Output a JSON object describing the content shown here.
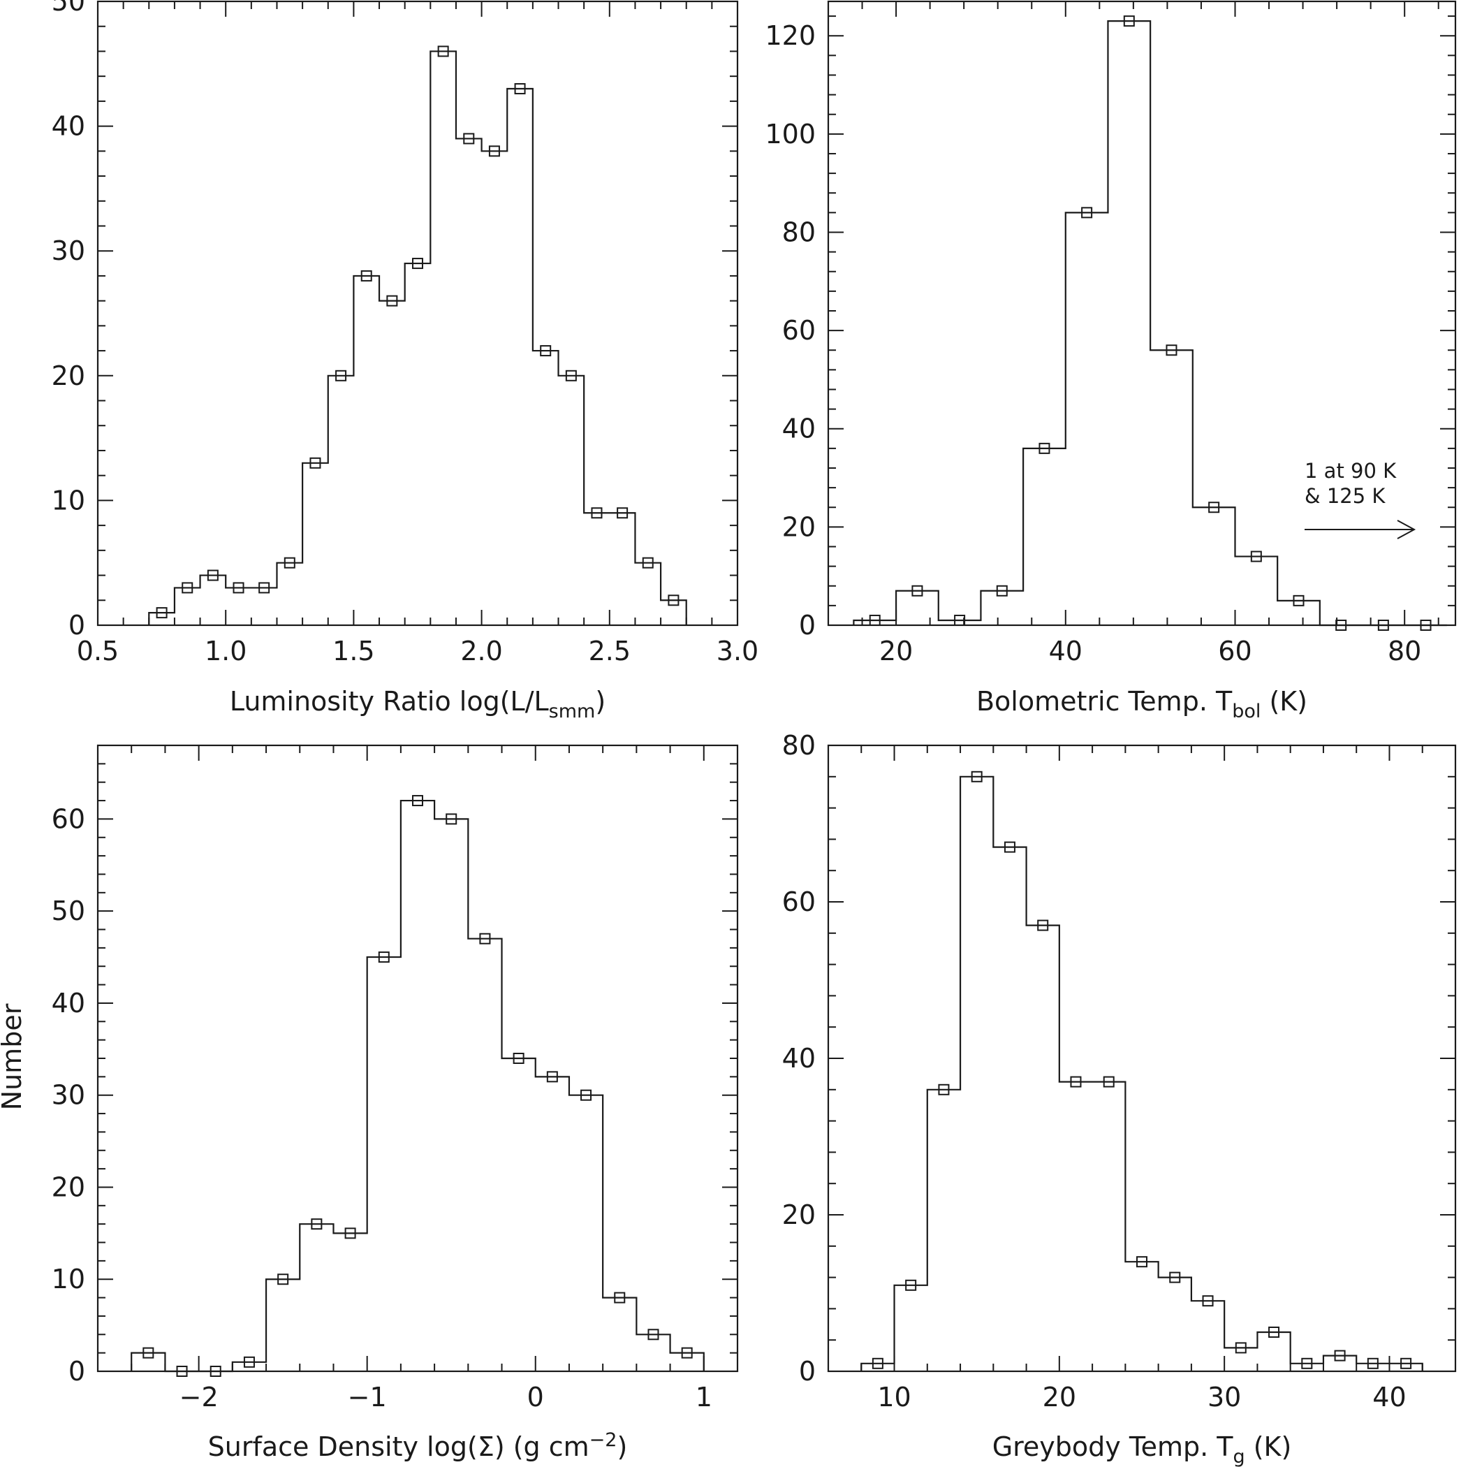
{
  "figure": {
    "shared_ylabel": "Number"
  },
  "chart_data": [
    {
      "type": "histogram",
      "id": "lum",
      "xlabel": {
        "main": "Luminosity Ratio log(L/L",
        "sub": "smm",
        "tail": ")"
      },
      "xlim": [
        0.5,
        3.0
      ],
      "ylim": [
        0,
        50
      ],
      "xticks": [
        0.5,
        1.0,
        1.5,
        2.0,
        2.5,
        3.0
      ],
      "xtick_labels": [
        "0.5",
        "1.0",
        "1.5",
        "2.0",
        "2.5",
        "3.0"
      ],
      "yticks": [
        0,
        10,
        20,
        30,
        40,
        50
      ],
      "ytick_labels": [
        "0",
        "10",
        "20",
        "30",
        "40",
        "50"
      ],
      "bin_edges": [
        0.7,
        0.8,
        0.9,
        1.0,
        1.1,
        1.2,
        1.3,
        1.4,
        1.5,
        1.6,
        1.7,
        1.8,
        1.9,
        2.0,
        2.1,
        2.2,
        2.3,
        2.4,
        2.5,
        2.6,
        2.7,
        2.8
      ],
      "counts": [
        1,
        3,
        4,
        3,
        3,
        5,
        13,
        20,
        28,
        26,
        29,
        46,
        39,
        38,
        43,
        22,
        20,
        9,
        9,
        5,
        2
      ]
    },
    {
      "type": "histogram",
      "id": "tbol",
      "xlabel": {
        "main": "Bolometric Temp. T",
        "sub": "bol",
        "tail": " (K)"
      },
      "xlim": [
        12,
        86
      ],
      "ylim": [
        0,
        127
      ],
      "xticks": [
        20,
        40,
        60,
        80
      ],
      "xtick_labels": [
        "20",
        "40",
        "60",
        "80"
      ],
      "yticks": [
        0,
        20,
        40,
        60,
        80,
        100,
        120
      ],
      "ytick_labels": [
        "0",
        "20",
        "40",
        "60",
        "80",
        "100",
        "120"
      ],
      "bin_edges": [
        15,
        20,
        25,
        30,
        35,
        40,
        45,
        50,
        55,
        60,
        65,
        70,
        75,
        80,
        85
      ],
      "counts": [
        1,
        7,
        1,
        7,
        36,
        84,
        123,
        56,
        24,
        14,
        5,
        0,
        0,
        0
      ],
      "annotation": {
        "lines": [
          "1 at 90 K",
          "& 125 K"
        ],
        "arrow": "right"
      }
    },
    {
      "type": "histogram",
      "id": "sigma",
      "xlabel": {
        "main": "Surface Density log(Σ) (g cm",
        "sup": "−2",
        "tail": ")"
      },
      "xlim": [
        -2.6,
        1.2
      ],
      "ylim": [
        0,
        68
      ],
      "xticks": [
        -2,
        -1,
        0,
        1
      ],
      "xtick_labels": [
        "−2",
        "−1",
        "0",
        "1"
      ],
      "yticks": [
        0,
        10,
        20,
        30,
        40,
        50,
        60
      ],
      "ytick_labels": [
        "0",
        "10",
        "20",
        "30",
        "40",
        "50",
        "60"
      ],
      "bin_edges": [
        -2.4,
        -2.2,
        -2.0,
        -1.8,
        -1.6,
        -1.4,
        -1.2,
        -1.0,
        -0.8,
        -0.6,
        -0.4,
        -0.2,
        0.0,
        0.2,
        0.4,
        0.6,
        0.8,
        1.0
      ],
      "counts": [
        2,
        0,
        0,
        1,
        10,
        16,
        15,
        45,
        62,
        60,
        47,
        34,
        32,
        30,
        8,
        4,
        2
      ]
    },
    {
      "type": "histogram",
      "id": "tg",
      "xlabel": {
        "main": "Greybody Temp. T",
        "sub": "g",
        "tail": " (K)"
      },
      "xlim": [
        6,
        44
      ],
      "ylim": [
        0,
        80
      ],
      "xticks": [
        10,
        20,
        30,
        40
      ],
      "xtick_labels": [
        "10",
        "20",
        "30",
        "40"
      ],
      "yticks": [
        0,
        20,
        40,
        60,
        80
      ],
      "ytick_labels": [
        "0",
        "20",
        "40",
        "60",
        "80"
      ],
      "bin_edges": [
        8,
        10,
        12,
        14,
        16,
        18,
        20,
        22,
        24,
        26,
        28,
        30,
        32,
        34,
        36,
        38,
        40,
        42
      ],
      "counts": [
        1,
        11,
        36,
        76,
        67,
        57,
        37,
        37,
        14,
        12,
        9,
        3,
        5,
        1,
        2,
        1,
        1
      ]
    }
  ]
}
